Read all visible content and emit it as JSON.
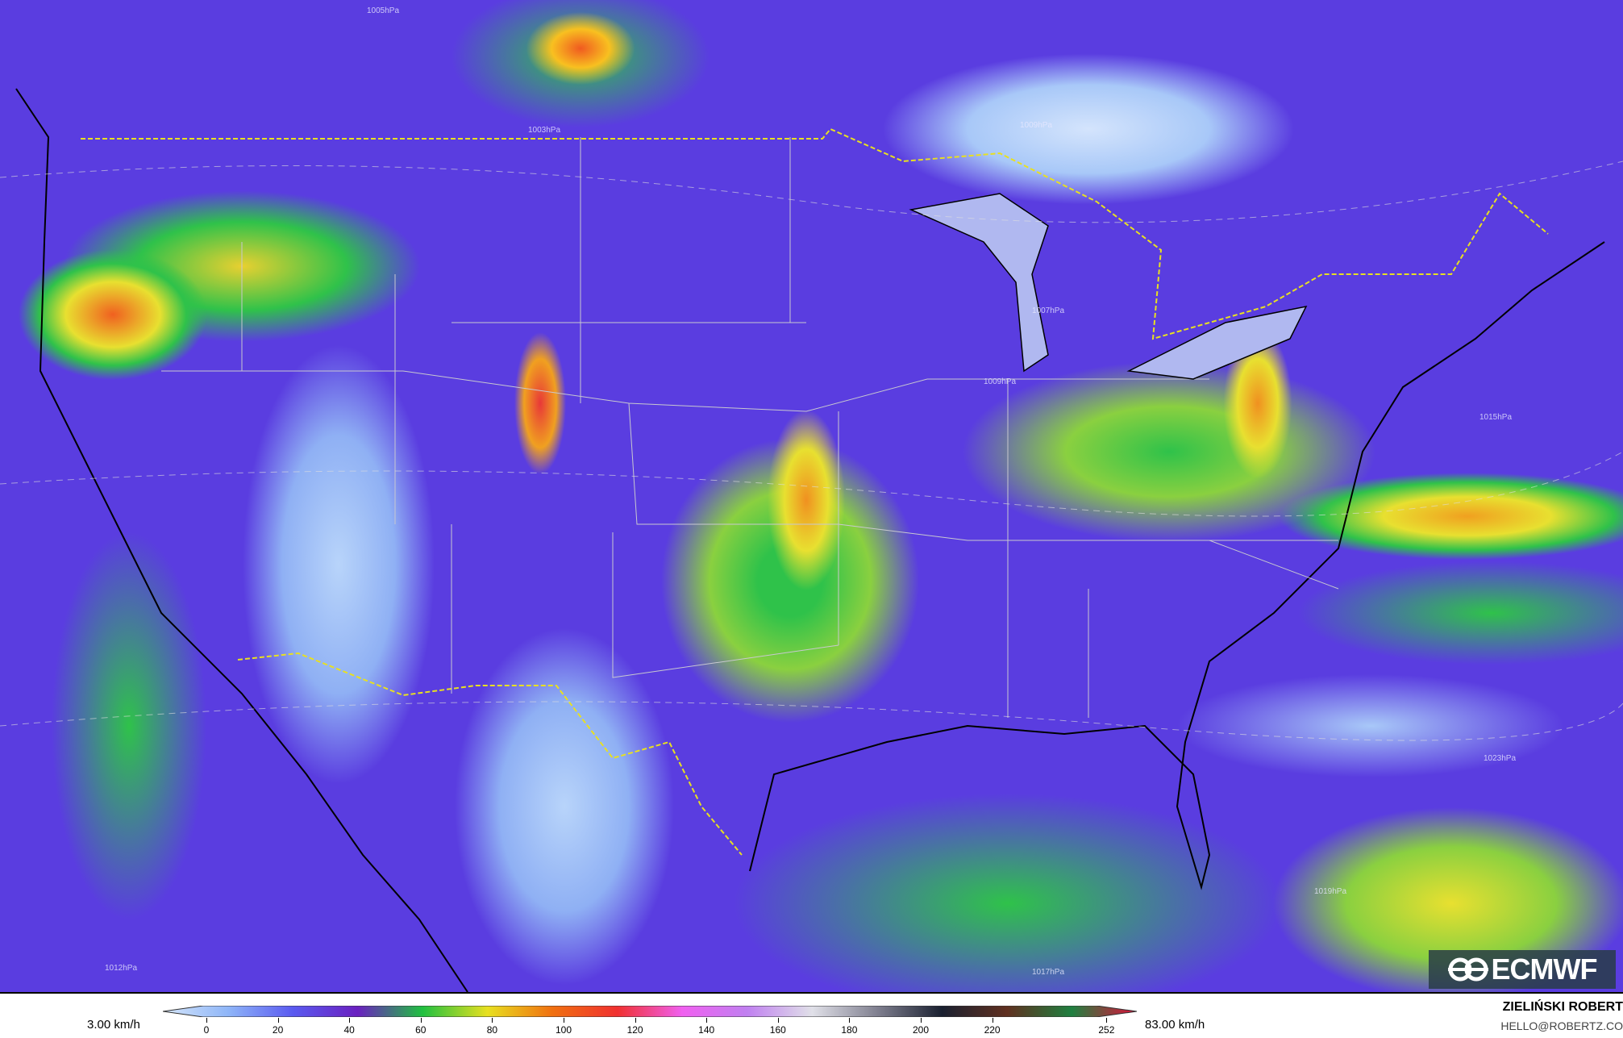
{
  "map": {
    "pressure_labels": [
      "1005hPa",
      "1003hPa",
      "1009hPa",
      "1007hPa",
      "1015hPa",
      "1023hPa",
      "1017hPa",
      "1019hPa",
      "1012hPa",
      "1009hPa"
    ]
  },
  "logo": {
    "text": "ECMWF"
  },
  "legend": {
    "min_label": "3.00 km/h",
    "max_label": "83.00 km/h",
    "ticks": [
      "0",
      "20",
      "40",
      "60",
      "80",
      "100",
      "120",
      "140",
      "160",
      "180",
      "200",
      "220",
      "252"
    ],
    "colors": [
      "#d6e6fa",
      "#8fb6f8",
      "#5a5af0",
      "#6a20c0",
      "#20c040",
      "#e8e020",
      "#f07010",
      "#f03030",
      "#f060f0",
      "#c080f0",
      "#e0e0e8",
      "#808090",
      "#1a2030",
      "#603020",
      "#208040",
      "#e0103a"
    ]
  },
  "credits": {
    "author": "ZIELIŃSKI ROBERT",
    "email": "HELLO@ROBERTZ.CO"
  }
}
